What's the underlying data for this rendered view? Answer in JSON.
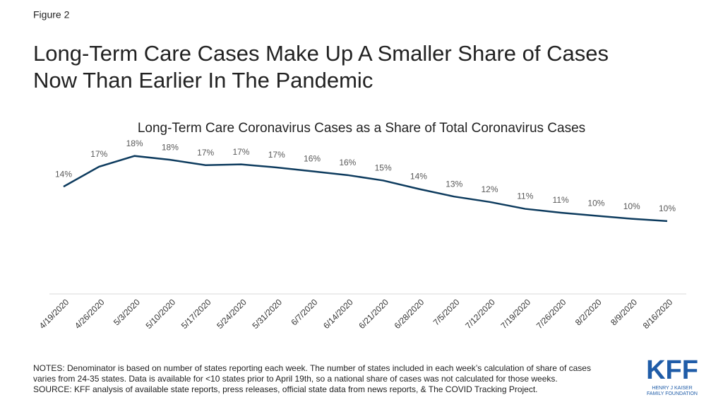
{
  "figure_label": "Figure 2",
  "chart_data": {
    "type": "line",
    "title": "Long-Term Care Cases Make Up A Smaller Share of Cases Now Than Earlier In The Pandemic",
    "subtitle": "Long-Term Care Coronavirus Cases as a Share of Total Coronavirus Cases",
    "categories": [
      "4/19/2020",
      "4/26/2020",
      "5/3/2020",
      "5/10/2020",
      "5/17/2020",
      "5/24/2020",
      "5/31/2020",
      "6/7/2020",
      "6/14/2020",
      "6/21/2020",
      "6/28/2020",
      "7/5/2020",
      "7/12/2020",
      "7/19/2020",
      "7/26/2020",
      "8/2/2020",
      "8/9/2020",
      "8/16/2020"
    ],
    "values": [
      14.0,
      16.6,
      18.0,
      17.5,
      16.8,
      16.9,
      16.5,
      16.0,
      15.5,
      14.8,
      13.7,
      12.7,
      12.0,
      11.1,
      10.6,
      10.2,
      9.8,
      9.5
    ],
    "value_labels": [
      "14%",
      "17%",
      "18%",
      "18%",
      "17%",
      "17%",
      "17%",
      "16%",
      "16%",
      "15%",
      "14%",
      "13%",
      "12%",
      "11%",
      "11%",
      "10%",
      "10%",
      "10%"
    ],
    "color": "#0d3b5e",
    "ylim": [
      0,
      20
    ]
  },
  "notes": [
    "NOTES: Denominator is based on number of states reporting each week. The number of states included in each week’s calculation of share of cases",
    "varies from 24-35 states. Data is available for <10 states prior to April 19th, so a national share of cases was not calculated for those weeks.",
    "SOURCE: KFF analysis of available state reports, press releases, official state data from news reports, & The COVID Tracking Project."
  ],
  "logo": {
    "name": "KFF",
    "line1": "HENRY J KAISER",
    "line2": "FAMILY FOUNDATION"
  }
}
